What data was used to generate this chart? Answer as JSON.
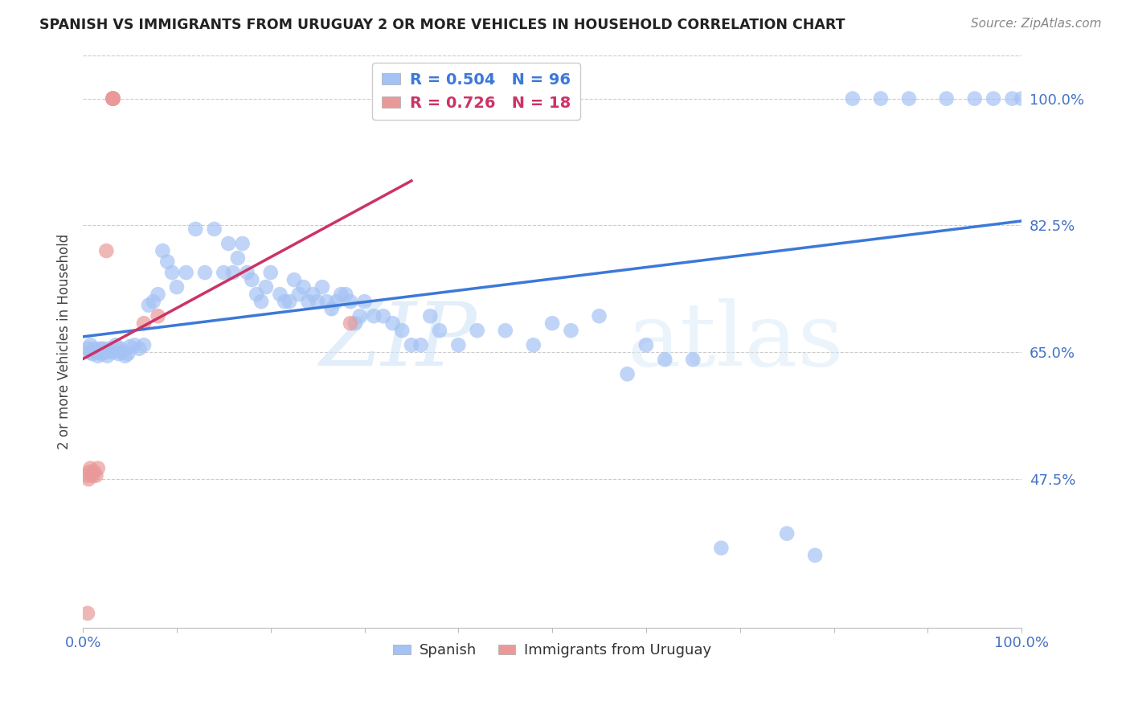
{
  "title": "SPANISH VS IMMIGRANTS FROM URUGUAY 2 OR MORE VEHICLES IN HOUSEHOLD CORRELATION CHART",
  "source": "Source: ZipAtlas.com",
  "ylabel": "2 or more Vehicles in Household",
  "blue_label": "Spanish",
  "pink_label": "Immigrants from Uruguay",
  "blue_R": 0.504,
  "blue_N": 96,
  "pink_R": 0.726,
  "pink_N": 18,
  "blue_color": "#a4c2f4",
  "pink_color": "#ea9999",
  "blue_line_color": "#3c78d8",
  "pink_line_color": "#cc3366",
  "watermark_zip": "ZIP",
  "watermark_atlas": "atlas",
  "xlim": [
    0.0,
    1.0
  ],
  "ylim": [
    0.27,
    1.06
  ],
  "ytick_values": [
    1.0,
    0.825,
    0.65,
    0.475
  ],
  "ytick_labels": [
    "100.0%",
    "82.5%",
    "65.0%",
    "47.5%"
  ],
  "blue_points_x": [
    0.005,
    0.007,
    0.008,
    0.01,
    0.012,
    0.015,
    0.016,
    0.018,
    0.02,
    0.022,
    0.024,
    0.026,
    0.028,
    0.03,
    0.032,
    0.035,
    0.038,
    0.04,
    0.042,
    0.045,
    0.048,
    0.05,
    0.055,
    0.06,
    0.065,
    0.07,
    0.075,
    0.08,
    0.085,
    0.09,
    0.095,
    0.1,
    0.11,
    0.12,
    0.13,
    0.14,
    0.15,
    0.155,
    0.16,
    0.165,
    0.17,
    0.175,
    0.18,
    0.185,
    0.19,
    0.195,
    0.2,
    0.21,
    0.215,
    0.22,
    0.225,
    0.23,
    0.235,
    0.24,
    0.245,
    0.25,
    0.255,
    0.26,
    0.265,
    0.27,
    0.275,
    0.28,
    0.285,
    0.29,
    0.295,
    0.3,
    0.31,
    0.32,
    0.33,
    0.34,
    0.35,
    0.36,
    0.37,
    0.38,
    0.4,
    0.42,
    0.45,
    0.48,
    0.5,
    0.52,
    0.55,
    0.58,
    0.6,
    0.62,
    0.65,
    0.68,
    0.75,
    0.78,
    0.82,
    0.85,
    0.88,
    0.92,
    0.95,
    0.97,
    0.99,
    1.0
  ],
  "blue_points_y": [
    0.655,
    0.65,
    0.66,
    0.648,
    0.655,
    0.65,
    0.645,
    0.655,
    0.648,
    0.655,
    0.65,
    0.645,
    0.655,
    0.652,
    0.65,
    0.66,
    0.648,
    0.655,
    0.65,
    0.645,
    0.648,
    0.658,
    0.66,
    0.655,
    0.66,
    0.715,
    0.72,
    0.73,
    0.79,
    0.775,
    0.76,
    0.74,
    0.76,
    0.82,
    0.76,
    0.82,
    0.76,
    0.8,
    0.76,
    0.78,
    0.8,
    0.76,
    0.75,
    0.73,
    0.72,
    0.74,
    0.76,
    0.73,
    0.72,
    0.72,
    0.75,
    0.73,
    0.74,
    0.72,
    0.73,
    0.72,
    0.74,
    0.72,
    0.71,
    0.72,
    0.73,
    0.73,
    0.72,
    0.69,
    0.7,
    0.72,
    0.7,
    0.7,
    0.69,
    0.68,
    0.66,
    0.66,
    0.7,
    0.68,
    0.66,
    0.68,
    0.68,
    0.66,
    0.69,
    0.68,
    0.7,
    0.62,
    0.66,
    0.64,
    0.64,
    0.38,
    0.4,
    0.37,
    1.0,
    1.0,
    1.0,
    1.0,
    1.0,
    1.0,
    1.0,
    1.0
  ],
  "pink_points_x": [
    0.005,
    0.006,
    0.007,
    0.008,
    0.01,
    0.012,
    0.014,
    0.016,
    0.025,
    0.032,
    0.032,
    0.032,
    0.032,
    0.032,
    0.065,
    0.08,
    0.285,
    0.005
  ],
  "pink_points_y": [
    0.48,
    0.475,
    0.485,
    0.49,
    0.48,
    0.485,
    0.48,
    0.49,
    0.79,
    1.0,
    1.0,
    1.0,
    1.0,
    1.0,
    0.69,
    0.7,
    0.69,
    0.29
  ]
}
